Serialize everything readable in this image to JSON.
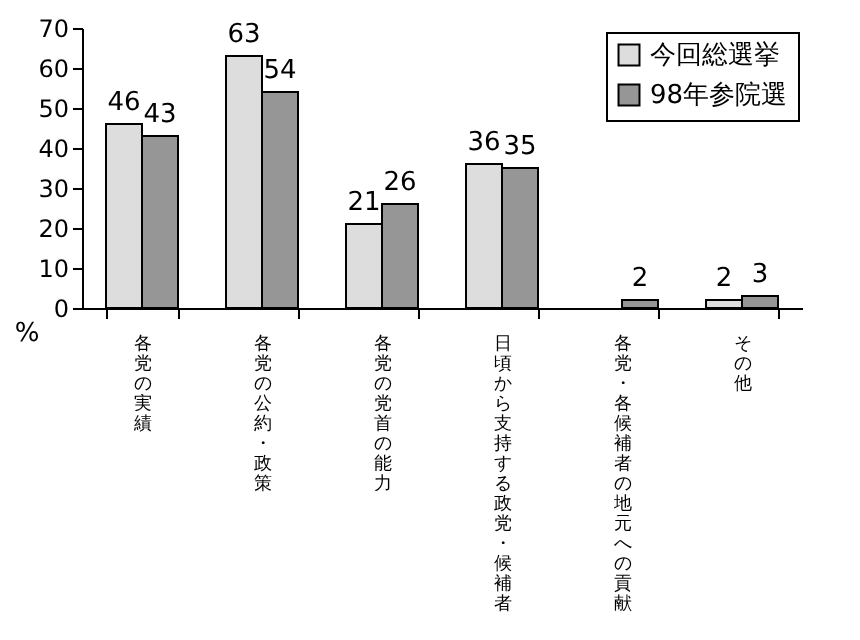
{
  "chart_data": {
    "type": "bar",
    "ylabel": "%",
    "categories": [
      "各党の実績",
      "各党の公約・政策",
      "各党の党首の能力",
      "日頃から支持する政党・候補者",
      "各党・各候補者の地元への貢献",
      "その他"
    ],
    "series": [
      {
        "name": "今回総選挙",
        "color": "#dddddd",
        "values": [
          46,
          63,
          21,
          36,
          null,
          2
        ]
      },
      {
        "name": "98年参院選",
        "color": "#969696",
        "values": [
          43,
          54,
          26,
          35,
          2,
          3
        ]
      }
    ],
    "ylim": [
      0,
      70
    ],
    "yticks": [
      0,
      10,
      20,
      30,
      40,
      50,
      60,
      70
    ],
    "grid": false,
    "legend": "top right",
    "data_labels": true
  }
}
